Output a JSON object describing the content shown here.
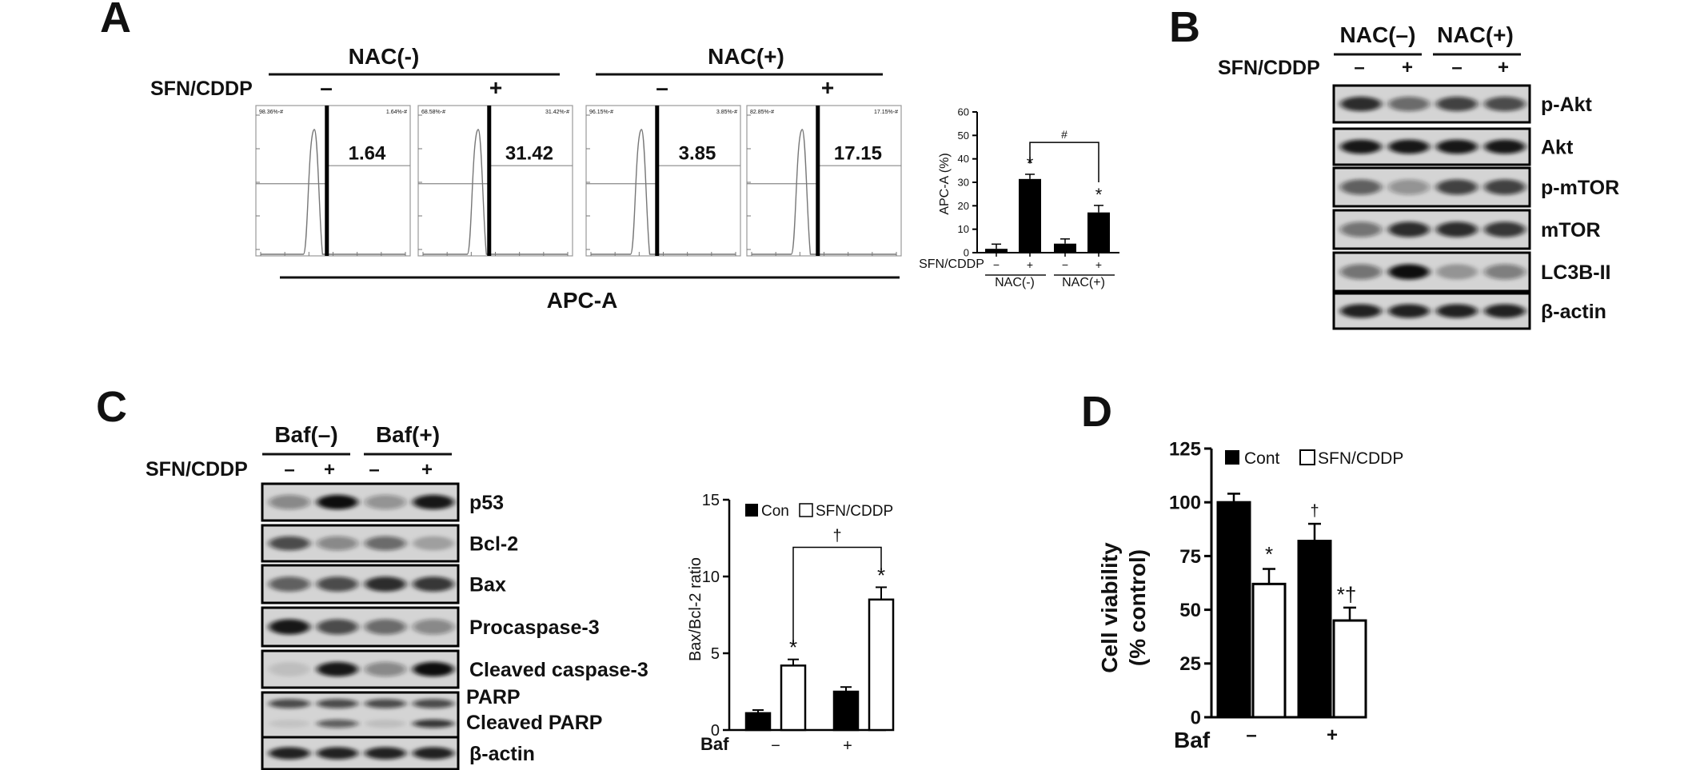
{
  "panels": {
    "a": "A",
    "b": "B",
    "c": "C",
    "d": "D"
  },
  "common": {
    "treat": "SFN/CDDP",
    "minus": "–",
    "plus": "+",
    "dash": "−"
  },
  "panel_a": {
    "nac_neg": "NAC(-)",
    "nac_pos": "NAC(+)",
    "histograms": [
      {
        "value": "1.64",
        "left": "98.36%-#",
        "right": "1.64%-#"
      },
      {
        "value": "31.42",
        "left": "68.58%-#",
        "right": "31.42%-#"
      },
      {
        "value": "3.85",
        "left": "96.15%-#",
        "right": "3.85%-#"
      },
      {
        "value": "17.15",
        "left": "82.85%-#",
        "right": "17.15%-#"
      }
    ],
    "xlabel": "APC-A"
  },
  "panel_b": {
    "nac_neg": "NAC(–)",
    "nac_pos": "NAC(+)",
    "bands": [
      "p-Akt",
      "Akt",
      "p-mTOR",
      "mTOR",
      "LC3B-II",
      "β-actin"
    ]
  },
  "panel_c": {
    "baf_neg": "Baf(–)",
    "baf_pos": "Baf(+)",
    "bands": [
      "p53",
      "Bcl-2",
      "Bax",
      "Procaspase-3",
      "Cleaved caspase-3",
      "PARP",
      "Cleaved PARP",
      "β-actin"
    ]
  },
  "chart_data": [
    {
      "type": "bar",
      "categories": [
        "NAC(-) −",
        "NAC(-) +",
        "NAC(+) −",
        "NAC(+) +"
      ],
      "values": [
        1.64,
        31.42,
        3.85,
        17.15
      ],
      "errors": [
        2,
        2,
        2,
        3
      ],
      "ylabel": "APC-A (%)",
      "ylim": [
        0,
        60
      ],
      "yticks": [
        0,
        10,
        20,
        30,
        40,
        50,
        60
      ],
      "xrow": "SFN/CDDP",
      "xticks": [
        "−",
        "+",
        "−",
        "+"
      ],
      "groups": [
        "NAC(-)",
        "NAC(+)"
      ],
      "marks": [
        "*",
        "*"
      ],
      "compare_mark": "#"
    },
    {
      "type": "bar",
      "categories": [
        "−",
        "+"
      ],
      "series": [
        {
          "name": "Con",
          "values": [
            1.1,
            2.5
          ],
          "errors": [
            0.2,
            0.3
          ],
          "color": "#000000"
        },
        {
          "name": "SFN/CDDP",
          "values": [
            4.2,
            8.5
          ],
          "errors": [
            0.4,
            0.8
          ],
          "color": "#ffffff"
        }
      ],
      "ylabel": "Bax/Bcl-2 ratio",
      "xrow": "Baf",
      "ylim": [
        0,
        15
      ],
      "yticks": [
        0,
        5,
        10,
        15
      ],
      "marks": [
        "*",
        "*"
      ],
      "compare_mark": "†"
    },
    {
      "type": "bar",
      "categories": [
        "–",
        "+"
      ],
      "series": [
        {
          "name": "Cont",
          "values": [
            100,
            82
          ],
          "errors": [
            4,
            8
          ],
          "color": "#000000"
        },
        {
          "name": "SFN/CDDP",
          "values": [
            62,
            45
          ],
          "errors": [
            7,
            6
          ],
          "color": "#ffffff"
        }
      ],
      "ylabel": "Cell viability",
      "ylabel2": "(% control)",
      "xrow": "Baf",
      "ylim": [
        0,
        125
      ],
      "yticks": [
        0,
        25,
        50,
        75,
        100,
        125
      ],
      "marks": [
        "*",
        "†",
        "*†"
      ]
    }
  ]
}
